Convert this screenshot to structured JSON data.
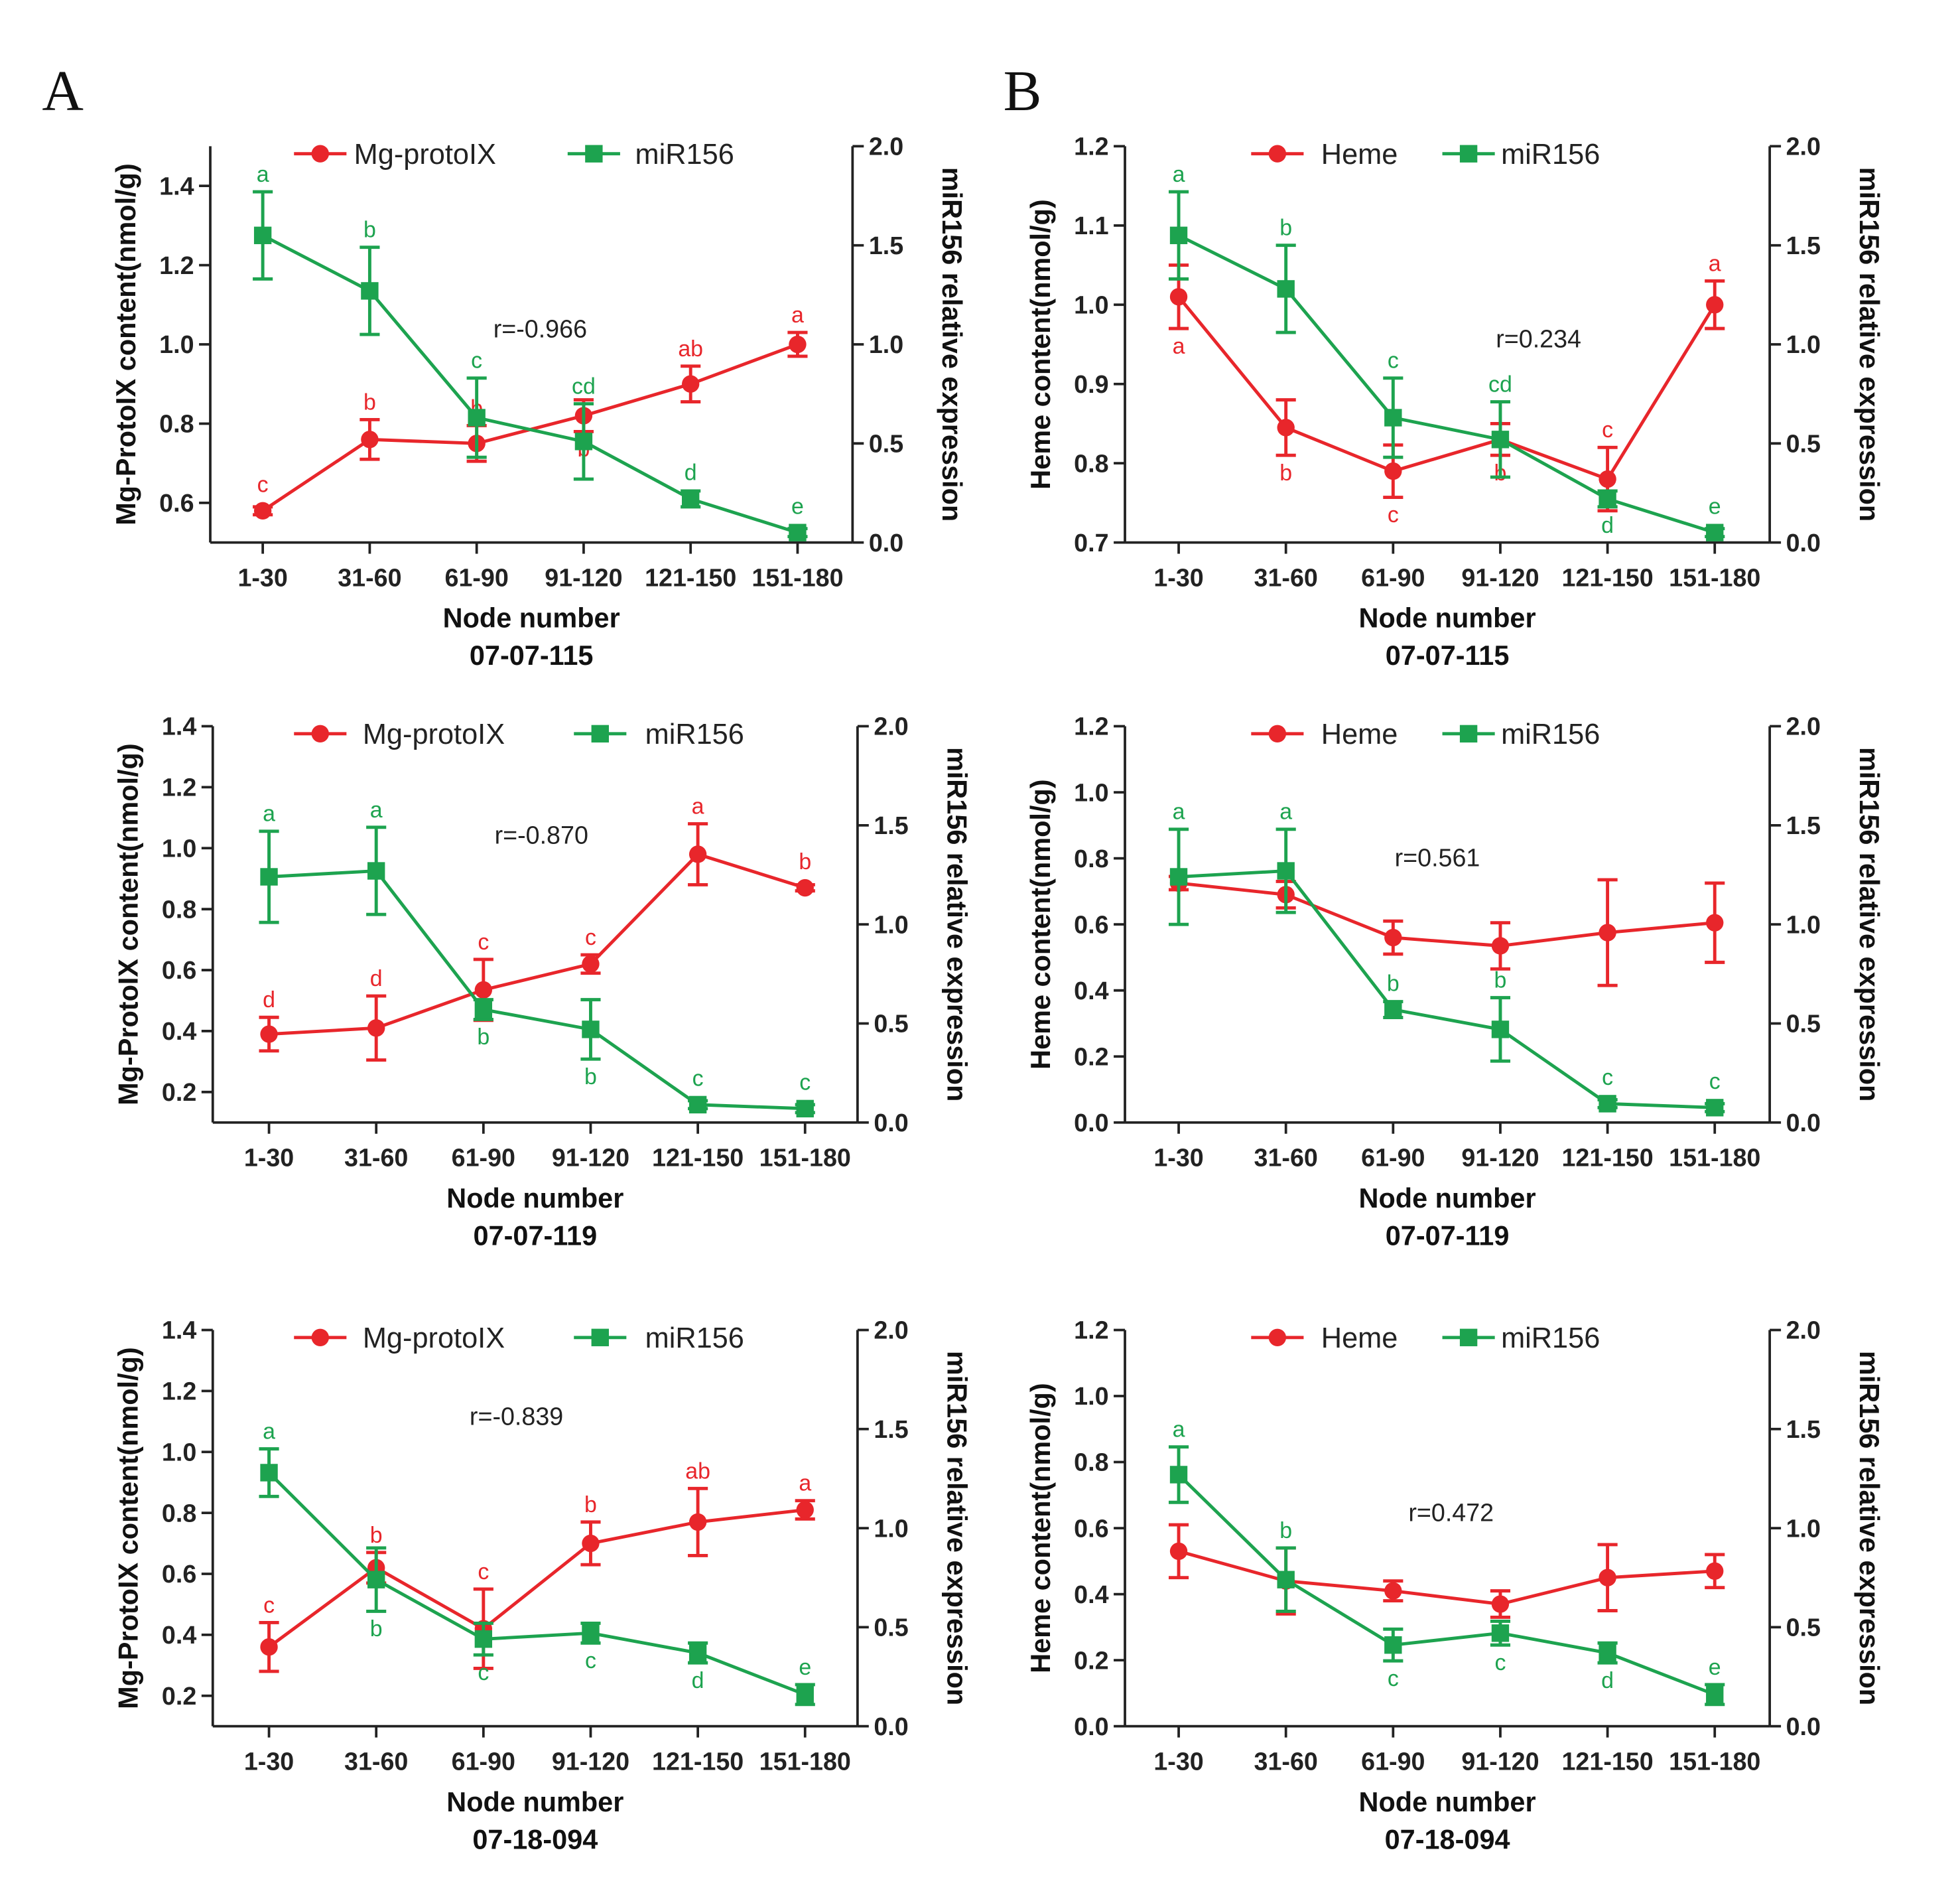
{
  "panel_labels": [
    "A",
    "B"
  ],
  "chart_data": [
    {
      "type": "line",
      "subtitle": "07-07-115",
      "xlabel": "Node number",
      "ylabel": "Mg-ProtoIX content(nmol/g)",
      "ylabel_right": "miR156 relative expression",
      "categories": [
        "1-30",
        "31-60",
        "61-90",
        "91-120",
        "121-150",
        "151-180"
      ],
      "ylim": [
        0.5,
        1.5
      ],
      "yticks": [
        "0.6",
        "0.8",
        "1.0",
        "1.2",
        "1.4"
      ],
      "ylim_right": [
        0,
        2.0
      ],
      "yticks_right": [
        "0.0",
        "0.5",
        "1.0",
        "1.5",
        "2.0"
      ],
      "annotation": "r=-0.966",
      "legend": "top",
      "series": [
        {
          "name": "Mg-protoIX",
          "right_axis": false,
          "color": "#e8262b",
          "values": [
            0.58,
            0.76,
            0.75,
            0.82,
            0.9,
            1.0
          ],
          "errors": [
            0.01,
            0.05,
            0.045,
            0.04,
            0.045,
            0.03
          ],
          "letters": [
            "c",
            "b",
            "b",
            "b",
            "ab",
            "a"
          ],
          "letters_below": [
            false,
            false,
            false,
            true,
            false,
            false
          ]
        },
        {
          "name": "miR156",
          "right_axis": true,
          "color": "#1da34f",
          "values": [
            1.55,
            1.27,
            0.63,
            0.51,
            0.22,
            0.05
          ],
          "errors": [
            0.22,
            0.22,
            0.2,
            0.19,
            0.04,
            0.02
          ],
          "letters": [
            "a",
            "b",
            "c",
            "cd",
            "d",
            "e"
          ],
          "letters_below": [
            false,
            false,
            false,
            false,
            false,
            false
          ]
        }
      ]
    },
    {
      "type": "line",
      "subtitle": "07-07-115",
      "xlabel": "Node number",
      "ylabel": "Heme content(nmol/g)",
      "ylabel_right": "miR156 relative expression",
      "categories": [
        "1-30",
        "31-60",
        "61-90",
        "91-120",
        "121-150",
        "151-180"
      ],
      "ylim": [
        0.7,
        1.2
      ],
      "yticks": [
        "0.7",
        "0.8",
        "0.9",
        "1.0",
        "1.1",
        "1.2"
      ],
      "ylim_right": [
        0,
        2.0
      ],
      "yticks_right": [
        "0.0",
        "0.5",
        "1.0",
        "1.5",
        "2.0"
      ],
      "annotation": "r=0.234",
      "legend": "top",
      "series": [
        {
          "name": "Heme",
          "right_axis": false,
          "color": "#e8262b",
          "values": [
            1.01,
            0.845,
            0.79,
            0.83,
            0.78,
            1.0
          ],
          "errors": [
            0.04,
            0.035,
            0.033,
            0.02,
            0.04,
            0.03
          ],
          "letters": [
            "a",
            "b",
            "c",
            "b",
            "c",
            "a"
          ],
          "letters_below": [
            true,
            true,
            true,
            true,
            false,
            false
          ]
        },
        {
          "name": "miR156",
          "right_axis": true,
          "color": "#1da34f",
          "values": [
            1.55,
            1.28,
            0.63,
            0.52,
            0.22,
            0.05
          ],
          "errors": [
            0.22,
            0.22,
            0.2,
            0.19,
            0.04,
            0.02
          ],
          "letters": [
            "a",
            "b",
            "c",
            "cd",
            "d",
            "e"
          ],
          "letters_below": [
            false,
            false,
            false,
            false,
            true,
            false
          ]
        }
      ]
    },
    {
      "type": "line",
      "subtitle": "07-07-119",
      "xlabel": "Node number",
      "ylabel": "Mg-ProtoIX content(nmol/g)",
      "ylabel_right": "miR156 relative expression",
      "categories": [
        "1-30",
        "31-60",
        "61-90",
        "91-120",
        "121-150",
        "151-180"
      ],
      "ylim": [
        0.1,
        1.4
      ],
      "yticks": [
        "0.2",
        "0.4",
        "0.6",
        "0.8",
        "1.0",
        "1.2",
        "1.4"
      ],
      "ylim_right": [
        0,
        2.0
      ],
      "yticks_right": [
        "0.0",
        "0.5",
        "1.0",
        "1.5",
        "2.0"
      ],
      "annotation": "r=-0.870",
      "legend": "top",
      "series": [
        {
          "name": "Mg-protoIX",
          "right_axis": false,
          "color": "#e8262b",
          "values": [
            0.39,
            0.41,
            0.535,
            0.62,
            0.98,
            0.87
          ],
          "errors": [
            0.055,
            0.105,
            0.1,
            0.03,
            0.1,
            0.01
          ],
          "letters": [
            "d",
            "d",
            "c",
            "c",
            "a",
            "b"
          ],
          "letters_below": [
            false,
            false,
            false,
            false,
            false,
            false
          ]
        },
        {
          "name": "miR156",
          "right_axis": true,
          "color": "#1da34f",
          "values": [
            1.24,
            1.27,
            0.57,
            0.47,
            0.09,
            0.07
          ],
          "errors": [
            0.23,
            0.22,
            0.05,
            0.15,
            0.02,
            0.02
          ],
          "letters": [
            "a",
            "a",
            "b",
            "b",
            "c",
            "c"
          ],
          "letters_below": [
            false,
            false,
            true,
            true,
            false,
            false
          ]
        }
      ]
    },
    {
      "type": "line",
      "subtitle": "07-07-119",
      "xlabel": "Node number",
      "ylabel": "Heme content(nmol/g)",
      "ylabel_right": "miR156 relative expression",
      "categories": [
        "1-30",
        "31-60",
        "61-90",
        "91-120",
        "121-150",
        "151-180"
      ],
      "ylim": [
        0,
        1.2
      ],
      "yticks": [
        "0.0",
        "0.2",
        "0.4",
        "0.6",
        "0.8",
        "1.0",
        "1.2"
      ],
      "ylim_right": [
        0,
        2.0
      ],
      "yticks_right": [
        "0.0",
        "0.5",
        "1.0",
        "1.5",
        "2.0"
      ],
      "annotation": "r=0.561",
      "legend": "top",
      "series": [
        {
          "name": "Heme",
          "right_axis": false,
          "color": "#e8262b",
          "values": [
            0.725,
            0.69,
            0.56,
            0.535,
            0.575,
            0.605
          ],
          "errors": [
            0.02,
            0.04,
            0.05,
            0.07,
            0.16,
            0.12
          ],
          "letters": [],
          "letters_below": []
        },
        {
          "name": "miR156",
          "right_axis": true,
          "color": "#1da34f",
          "values": [
            1.24,
            1.27,
            0.57,
            0.47,
            0.095,
            0.075
          ],
          "errors": [
            0.24,
            0.21,
            0.04,
            0.16,
            0.02,
            0.02
          ],
          "letters": [
            "a",
            "a",
            "b",
            "b",
            "c",
            "c"
          ],
          "letters_below": [
            false,
            false,
            false,
            false,
            false,
            false
          ]
        }
      ]
    },
    {
      "type": "line",
      "subtitle": "07-18-094",
      "xlabel": "Node number",
      "ylabel": "Mg-ProtoIX content(nmol/g)",
      "ylabel_right": "miR156 relative expression",
      "categories": [
        "1-30",
        "31-60",
        "61-90",
        "91-120",
        "121-150",
        "151-180"
      ],
      "ylim": [
        0.1,
        1.4
      ],
      "yticks": [
        "0.2",
        "0.4",
        "0.6",
        "0.8",
        "1.0",
        "1.2",
        "1.4"
      ],
      "ylim_right": [
        0,
        2.0
      ],
      "yticks_right": [
        "0.0",
        "0.5",
        "1.0",
        "1.5",
        "2.0"
      ],
      "annotation": "r=-0.839",
      "legend": "top",
      "series": [
        {
          "name": "Mg-protoIX",
          "right_axis": false,
          "color": "#e8262b",
          "values": [
            0.36,
            0.62,
            0.42,
            0.7,
            0.77,
            0.81
          ],
          "errors": [
            0.08,
            0.05,
            0.13,
            0.07,
            0.11,
            0.03
          ],
          "letters": [
            "c",
            "b",
            "c",
            "b",
            "ab",
            "a"
          ],
          "letters_below": [
            false,
            false,
            false,
            false,
            false,
            false
          ]
        },
        {
          "name": "miR156",
          "right_axis": true,
          "color": "#1da34f",
          "values": [
            1.28,
            0.74,
            0.44,
            0.47,
            0.37,
            0.16
          ],
          "errors": [
            0.12,
            0.16,
            0.08,
            0.05,
            0.05,
            0.05
          ],
          "letters": [
            "a",
            "b",
            "c",
            "c",
            "d",
            "e"
          ],
          "letters_below": [
            false,
            true,
            true,
            true,
            true,
            false
          ]
        }
      ]
    },
    {
      "type": "line",
      "subtitle": "07-18-094",
      "xlabel": "Node number",
      "ylabel": "Heme content(nmol/g)",
      "ylabel_right": "miR156 relative expression",
      "categories": [
        "1-30",
        "31-60",
        "61-90",
        "91-120",
        "121-150",
        "151-180"
      ],
      "ylim": [
        0,
        1.2
      ],
      "yticks": [
        "0.0",
        "0.2",
        "0.4",
        "0.6",
        "0.8",
        "1.0",
        "1.2"
      ],
      "ylim_right": [
        0,
        2.0
      ],
      "yticks_right": [
        "0.0",
        "0.5",
        "1.0",
        "1.5",
        "2.0"
      ],
      "annotation": "r=0.472",
      "legend": "top",
      "series": [
        {
          "name": "Heme",
          "right_axis": false,
          "color": "#e8262b",
          "values": [
            0.53,
            0.44,
            0.41,
            0.37,
            0.45,
            0.47
          ],
          "errors": [
            0.08,
            0.1,
            0.03,
            0.04,
            0.1,
            0.05
          ],
          "letters": [],
          "letters_below": []
        },
        {
          "name": "miR156",
          "right_axis": true,
          "color": "#1da34f",
          "values": [
            1.27,
            0.74,
            0.41,
            0.47,
            0.37,
            0.16
          ],
          "errors": [
            0.14,
            0.16,
            0.08,
            0.06,
            0.05,
            0.05
          ],
          "letters": [
            "a",
            "b",
            "c",
            "c",
            "d",
            "e"
          ],
          "letters_below": [
            false,
            false,
            true,
            true,
            true,
            false
          ]
        }
      ]
    }
  ]
}
